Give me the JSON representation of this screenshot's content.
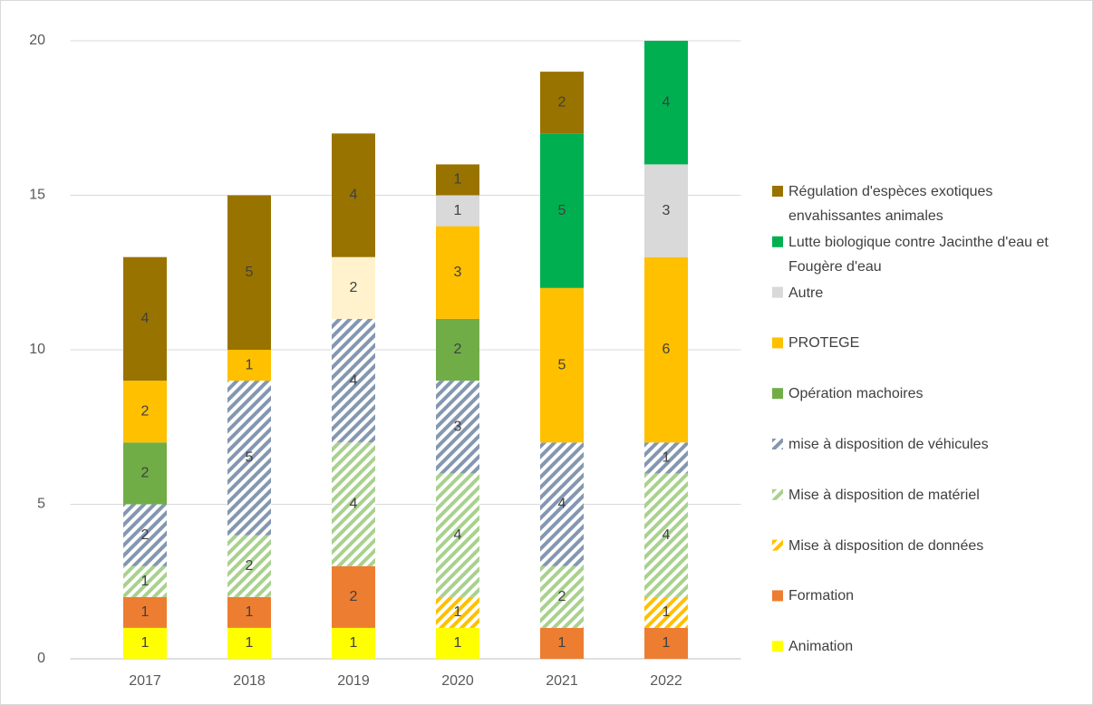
{
  "chart_data": {
    "type": "stacked_bar",
    "categories": [
      "2017",
      "2018",
      "2019",
      "2020",
      "2021",
      "2022"
    ],
    "ylim": [
      0,
      20
    ],
    "yticks": [
      0,
      5,
      10,
      15,
      20
    ],
    "grid": true,
    "series": [
      {
        "name": "Animation",
        "color": "#FFFF00",
        "values": [
          1,
          1,
          1,
          1,
          null,
          null
        ]
      },
      {
        "name": "Formation",
        "color": "#ED7D31",
        "values": [
          1,
          1,
          2,
          null,
          1,
          1
        ]
      },
      {
        "name": "Mise à disposition de données",
        "color": "#FFC000",
        "pattern": "hatch",
        "values": [
          null,
          null,
          null,
          1,
          null,
          1
        ]
      },
      {
        "name": "Mise à disposition de matériel",
        "color": "#A9D18E",
        "pattern": "hatch",
        "values": [
          1,
          2,
          4,
          4,
          2,
          4
        ]
      },
      {
        "name": "mise à disposition de véhicules",
        "color": "#8497B0",
        "pattern": "hatch",
        "values": [
          2,
          5,
          4,
          3,
          4,
          1
        ]
      },
      {
        "name": "Opération machoires",
        "color": "#70AD47",
        "values": [
          2,
          null,
          null,
          2,
          null,
          null
        ]
      },
      {
        "name": "PROTEGE",
        "color": "#FFC000",
        "values": [
          2,
          1,
          null,
          3,
          5,
          6
        ]
      },
      {
        "color": "#FFF2CC",
        "values": [
          null,
          null,
          2,
          null,
          null,
          null
        ]
      },
      {
        "name": "Autre",
        "color": "#D9D9D9",
        "values": [
          null,
          null,
          null,
          1,
          null,
          3
        ]
      },
      {
        "name": "Lutte biologique contre Jacinthe d'eau et Fougère d'eau",
        "color": "#00B050",
        "values": [
          null,
          null,
          null,
          null,
          5,
          4
        ]
      },
      {
        "name": "Régulation d'espèces exotiques envahissantes animales",
        "color": "#997300",
        "values": [
          4,
          5,
          4,
          1,
          2,
          null
        ]
      }
    ]
  }
}
